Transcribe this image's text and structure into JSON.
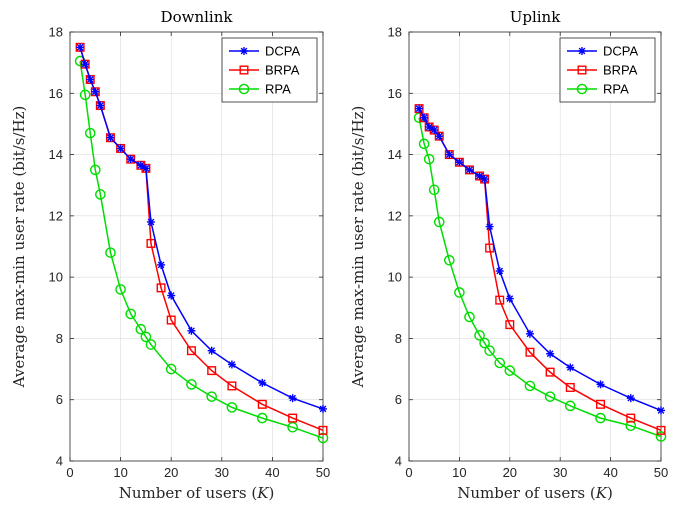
{
  "chart_data": [
    {
      "type": "line",
      "title": "Downlink",
      "xlabel_text": "Number of users ",
      "xlabel_var": "K",
      "ylabel": "Average max-min user rate (bit/s/Hz)",
      "xlim": [
        0,
        50
      ],
      "ylim": [
        4,
        18
      ],
      "xticks": [
        0,
        10,
        20,
        30,
        40,
        50
      ],
      "yticks": [
        4,
        6,
        8,
        10,
        12,
        14,
        16,
        18
      ],
      "grid": true,
      "legend_position": "top-right",
      "series": [
        {
          "name": "DCPA",
          "color": "#0000ff",
          "marker": "asterisk",
          "x": [
            2,
            3,
            4,
            5,
            6,
            8,
            10,
            12,
            14,
            15,
            16,
            18,
            20,
            24,
            28,
            32,
            38,
            44,
            50
          ],
          "y": [
            17.5,
            16.95,
            16.45,
            16.05,
            15.6,
            14.55,
            14.2,
            13.85,
            13.65,
            13.55,
            11.8,
            10.4,
            9.4,
            8.25,
            7.6,
            7.15,
            6.55,
            6.05,
            5.7
          ]
        },
        {
          "name": "BRPA",
          "color": "#ff0000",
          "marker": "square",
          "x": [
            2,
            3,
            4,
            5,
            6,
            8,
            10,
            12,
            14,
            15,
            16,
            18,
            20,
            24,
            28,
            32,
            38,
            44,
            50
          ],
          "y": [
            17.5,
            16.95,
            16.45,
            16.05,
            15.6,
            14.55,
            14.2,
            13.85,
            13.65,
            13.55,
            11.1,
            9.65,
            8.6,
            7.6,
            6.95,
            6.45,
            5.85,
            5.4,
            5.0
          ]
        },
        {
          "name": "RPA",
          "color": "#00dd00",
          "marker": "circle",
          "x": [
            2,
            3,
            4,
            5,
            6,
            8,
            10,
            12,
            14,
            15,
            16,
            20,
            24,
            28,
            32,
            38,
            44,
            50
          ],
          "y": [
            17.05,
            15.95,
            14.7,
            13.5,
            12.7,
            10.8,
            9.6,
            8.8,
            8.3,
            8.05,
            7.8,
            7.0,
            6.5,
            6.1,
            5.75,
            5.4,
            5.1,
            4.75
          ]
        }
      ]
    },
    {
      "type": "line",
      "title": "Uplink",
      "xlabel_text": "Number of users ",
      "xlabel_var": "K",
      "ylabel": "Average max-min user rate (bit/s/Hz)",
      "xlim": [
        0,
        50
      ],
      "ylim": [
        4,
        18
      ],
      "xticks": [
        0,
        10,
        20,
        30,
        40,
        50
      ],
      "yticks": [
        4,
        6,
        8,
        10,
        12,
        14,
        16,
        18
      ],
      "grid": true,
      "legend_position": "top-right",
      "series": [
        {
          "name": "DCPA",
          "color": "#0000ff",
          "marker": "asterisk",
          "x": [
            2,
            3,
            4,
            5,
            6,
            8,
            10,
            12,
            14,
            15,
            16,
            18,
            20,
            24,
            28,
            32,
            38,
            44,
            50
          ],
          "y": [
            15.5,
            15.2,
            14.9,
            14.8,
            14.6,
            14.0,
            13.75,
            13.5,
            13.3,
            13.2,
            11.65,
            10.2,
            9.3,
            8.15,
            7.5,
            7.05,
            6.5,
            6.05,
            5.65
          ]
        },
        {
          "name": "BRPA",
          "color": "#ff0000",
          "marker": "square",
          "x": [
            2,
            3,
            4,
            5,
            6,
            8,
            10,
            12,
            14,
            15,
            16,
            18,
            20,
            24,
            28,
            32,
            38,
            44,
            50
          ],
          "y": [
            15.5,
            15.2,
            14.9,
            14.8,
            14.6,
            14.0,
            13.75,
            13.5,
            13.3,
            13.2,
            10.95,
            9.25,
            8.45,
            7.55,
            6.9,
            6.4,
            5.85,
            5.4,
            5.0
          ]
        },
        {
          "name": "RPA",
          "color": "#00dd00",
          "marker": "circle",
          "x": [
            2,
            3,
            4,
            5,
            6,
            8,
            10,
            12,
            14,
            15,
            16,
            18,
            20,
            24,
            28,
            32,
            38,
            44,
            50
          ],
          "y": [
            15.2,
            14.35,
            13.85,
            12.85,
            11.8,
            10.55,
            9.5,
            8.7,
            8.1,
            7.85,
            7.6,
            7.2,
            6.95,
            6.45,
            6.1,
            5.8,
            5.4,
            5.15,
            4.8
          ]
        }
      ]
    }
  ]
}
